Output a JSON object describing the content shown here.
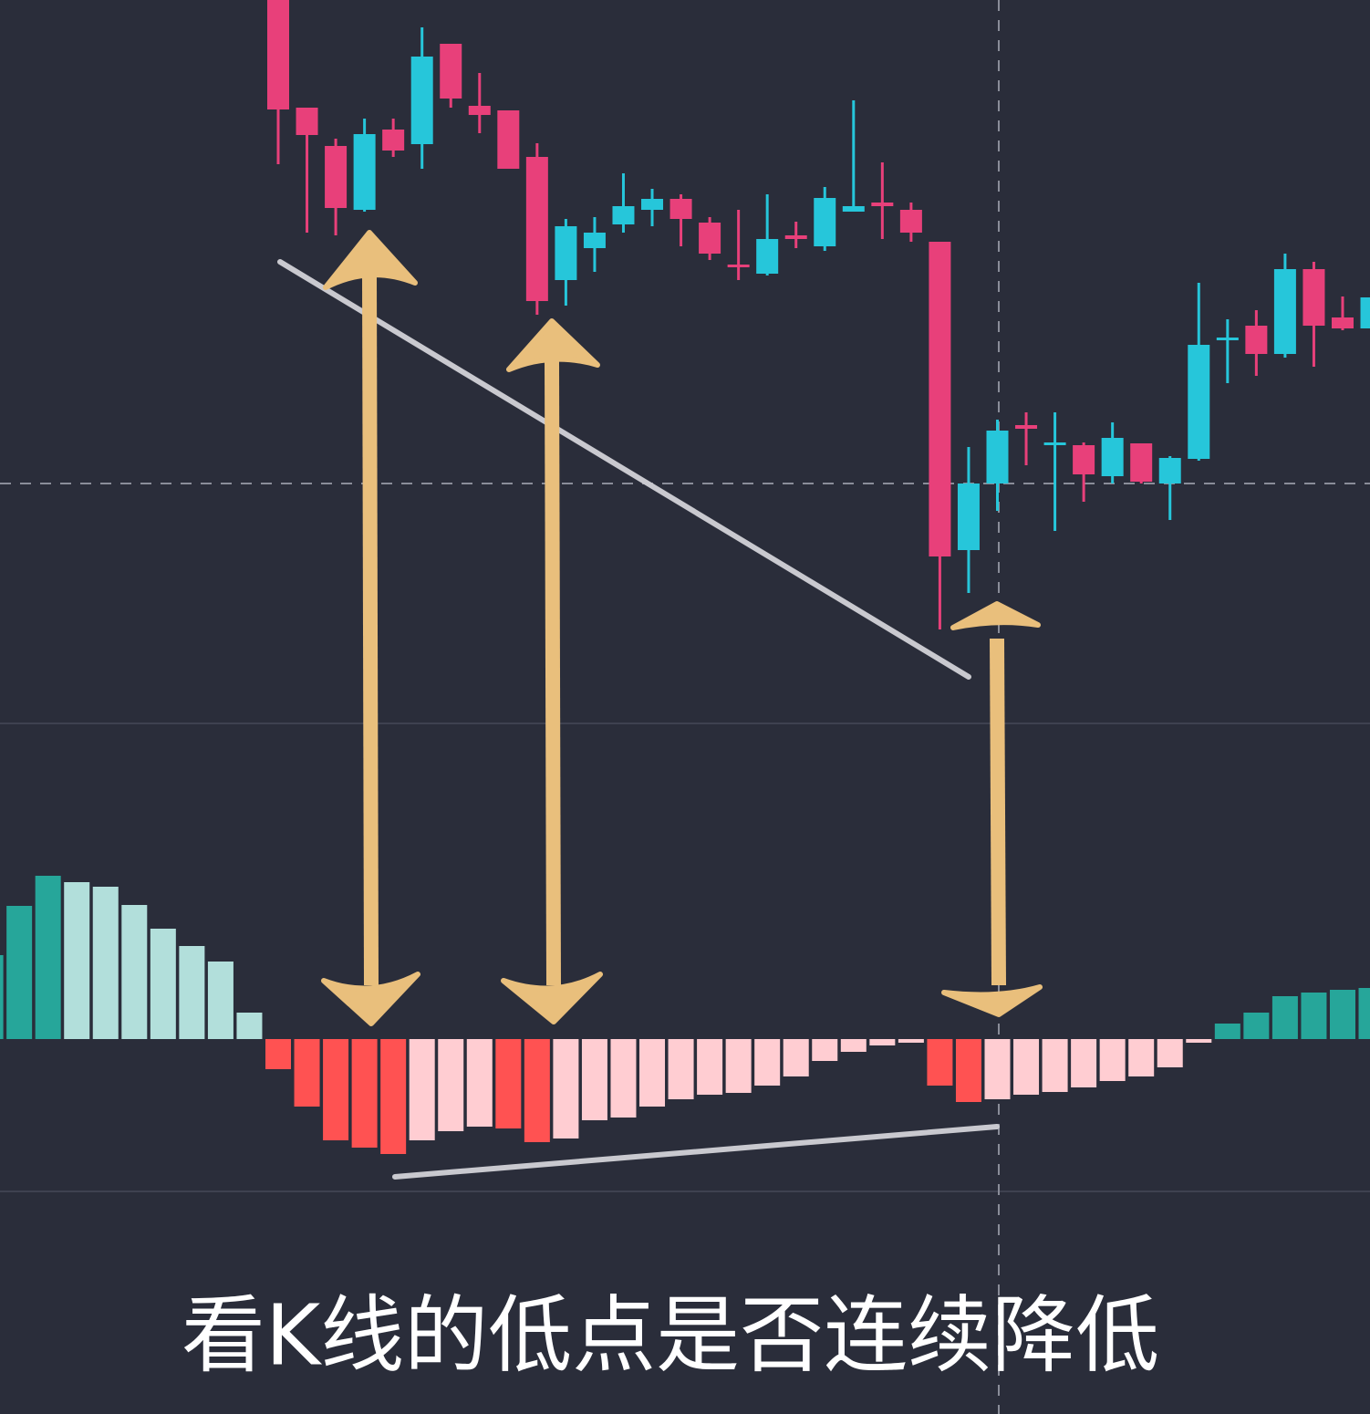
{
  "chart_data": [
    {
      "type": "candlestick",
      "open": [
        79.3,
        67.5,
        63.3,
        56.3,
        65.1,
        63.5,
        74.5,
        67.7,
        67.2,
        62.1,
        48.6,
        52.1,
        54.7,
        56.3,
        57.5,
        54.9,
        50.3,
        49.3,
        53.5,
        52.3,
        56.1,
        57.1,
        56.3,
        52.8,
        19.0,
        26.3,
        32.7,
        30.6,
        30.5,
        27.1,
        30.7,
        26.3,
        29.0,
        42.0,
        43.6,
        40.5,
        49.8,
        44.5,
        43.3
      ],
      "high": [
        79.3,
        67.5,
        64.1,
        66.3,
        66.3,
        76.3,
        74.5,
        71.3,
        67.2,
        63.6,
        55.3,
        55.5,
        60.3,
        58.6,
        58.0,
        55.5,
        56.3,
        58.0,
        55.0,
        58.8,
        68.3,
        61.5,
        57.1,
        52.8,
        30.3,
        33.3,
        34.1,
        34.1,
        30.8,
        33.0,
        30.7,
        29.3,
        48.3,
        44.3,
        45.3,
        51.5,
        50.6,
        46.8,
        48.0
      ],
      "low": [
        61.3,
        53.8,
        53.5,
        56.1,
        62.1,
        60.8,
        67.5,
        64.7,
        60.8,
        44.8,
        45.8,
        49.5,
        53.8,
        54.5,
        52.3,
        50.8,
        48.6,
        49.1,
        52.1,
        51.8,
        56.1,
        53.1,
        52.8,
        10.3,
        14.3,
        23.3,
        28.3,
        21.1,
        24.3,
        26.3,
        26.3,
        22.3,
        28.8,
        37.3,
        38.1,
        40.1,
        39.1,
        43.1,
        42.0
      ],
      "close": [
        67.3,
        64.5,
        56.5,
        64.6,
        62.8,
        73.1,
        68.5,
        66.7,
        60.8,
        46.3,
        54.5,
        53.8,
        56.7,
        57.5,
        55.3,
        51.5,
        50.1,
        53.1,
        53.1,
        57.6,
        56.7,
        56.7,
        53.8,
        18.3,
        26.3,
        32.1,
        32.3,
        30.8,
        27.3,
        31.3,
        26.5,
        29.1,
        41.5,
        42.3,
        40.5,
        49.8,
        43.6,
        43.3,
        46.7
      ],
      "up_color": "#26c6da",
      "down_color": "#e8407a",
      "ylim": [
        0,
        79.3
      ]
    },
    {
      "type": "bar",
      "values": [
        9.2,
        14.6,
        17.9,
        17.2,
        16.7,
        14.7,
        12.1,
        10.2,
        8.5,
        2.9,
        -3.3,
        -7.4,
        -11.1,
        -11.9,
        -12.6,
        -11.1,
        -10.1,
        -9.6,
        -9.8,
        -11.3,
        -10.9,
        -8.9,
        -8.6,
        -7.4,
        -6.6,
        -6.1,
        -5.9,
        -5.1,
        -4.1,
        -2.4,
        -1.4,
        -0.7,
        -0.4,
        -5.1,
        -6.9,
        -6.6,
        -6.1,
        -5.8,
        -5.3,
        -4.6,
        -4.1,
        -3.1,
        -0.4,
        1.7,
        2.9,
        4.7,
        5.1,
        5.4,
        5.6
      ],
      "colors": {
        "rising_positive": "#26a69a",
        "falling_positive": "#b2dfdb",
        "falling_negative": "#ff5252",
        "rising_negative": "#ffcdd2"
      },
      "ylim": [
        -16.7,
        34.6
      ]
    }
  ],
  "caption": "看K线的低点是否连续降低"
}
